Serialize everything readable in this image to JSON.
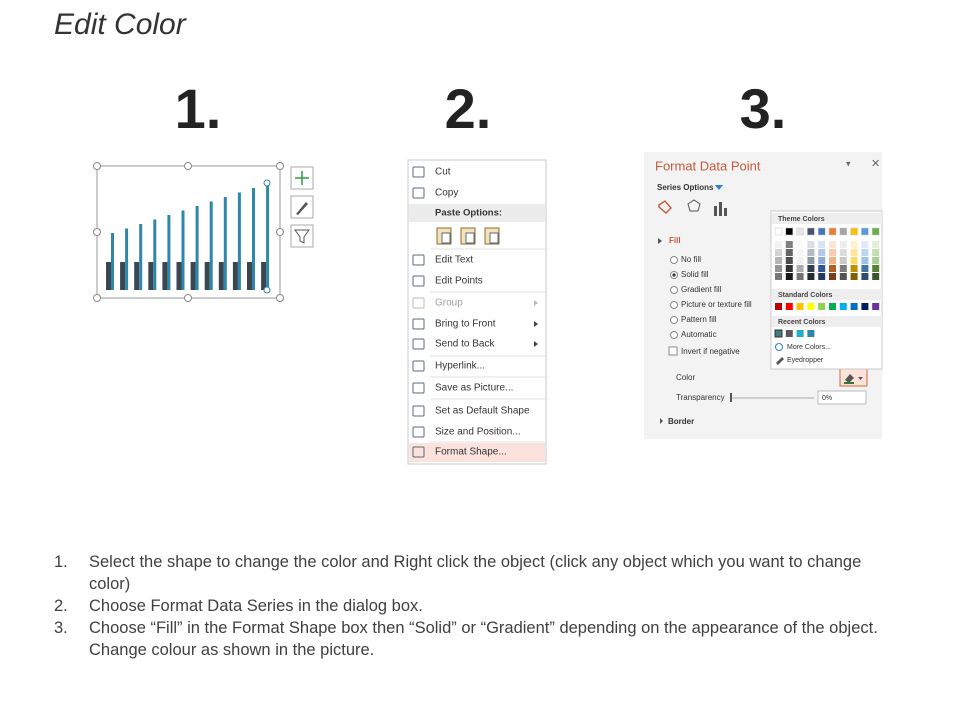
{
  "title": "Edit Color",
  "step_numbers": [
    "1.",
    "2.",
    "3."
  ],
  "context_menu": {
    "items": [
      "Cut",
      "Copy",
      "Paste Options:",
      "Edit Text",
      "Edit Points",
      "Group",
      "Bring to Front",
      "Send to Back",
      "Hyperlink...",
      "Save as Picture...",
      "Set as Default Shape",
      "Size and Position...",
      "Format Shape..."
    ]
  },
  "format_pane": {
    "title": "Format Data Point",
    "tab": "Series Options",
    "section": "Fill",
    "fill_options": [
      "No fill",
      "Solid fill",
      "Gradient fill",
      "Picture or texture fill",
      "Pattern fill",
      "Automatic"
    ],
    "invert": "Invert if negative",
    "color_label": "Color",
    "transparency_label": "Transparency",
    "transparency_value": "0%",
    "border": "Border",
    "color_menu": {
      "theme": "Theme Colors",
      "standard": "Standard Colors",
      "recent": "Recent Colors",
      "more": "More Colors...",
      "eyedropper": "Eyedropper"
    }
  },
  "instructions": [
    {
      "number": "1.",
      "text": "Select the shape to change the color and Right click the object (click any object which you want to change color)"
    },
    {
      "number": "2.",
      "text": "Choose Format Data Series in the dialog box."
    },
    {
      "number": "3.",
      "text": "Choose “Fill” in the Format Shape box then “Solid” or “Gradient” depending on the appearance of the object. Change colour as shown in the picture."
    }
  ]
}
